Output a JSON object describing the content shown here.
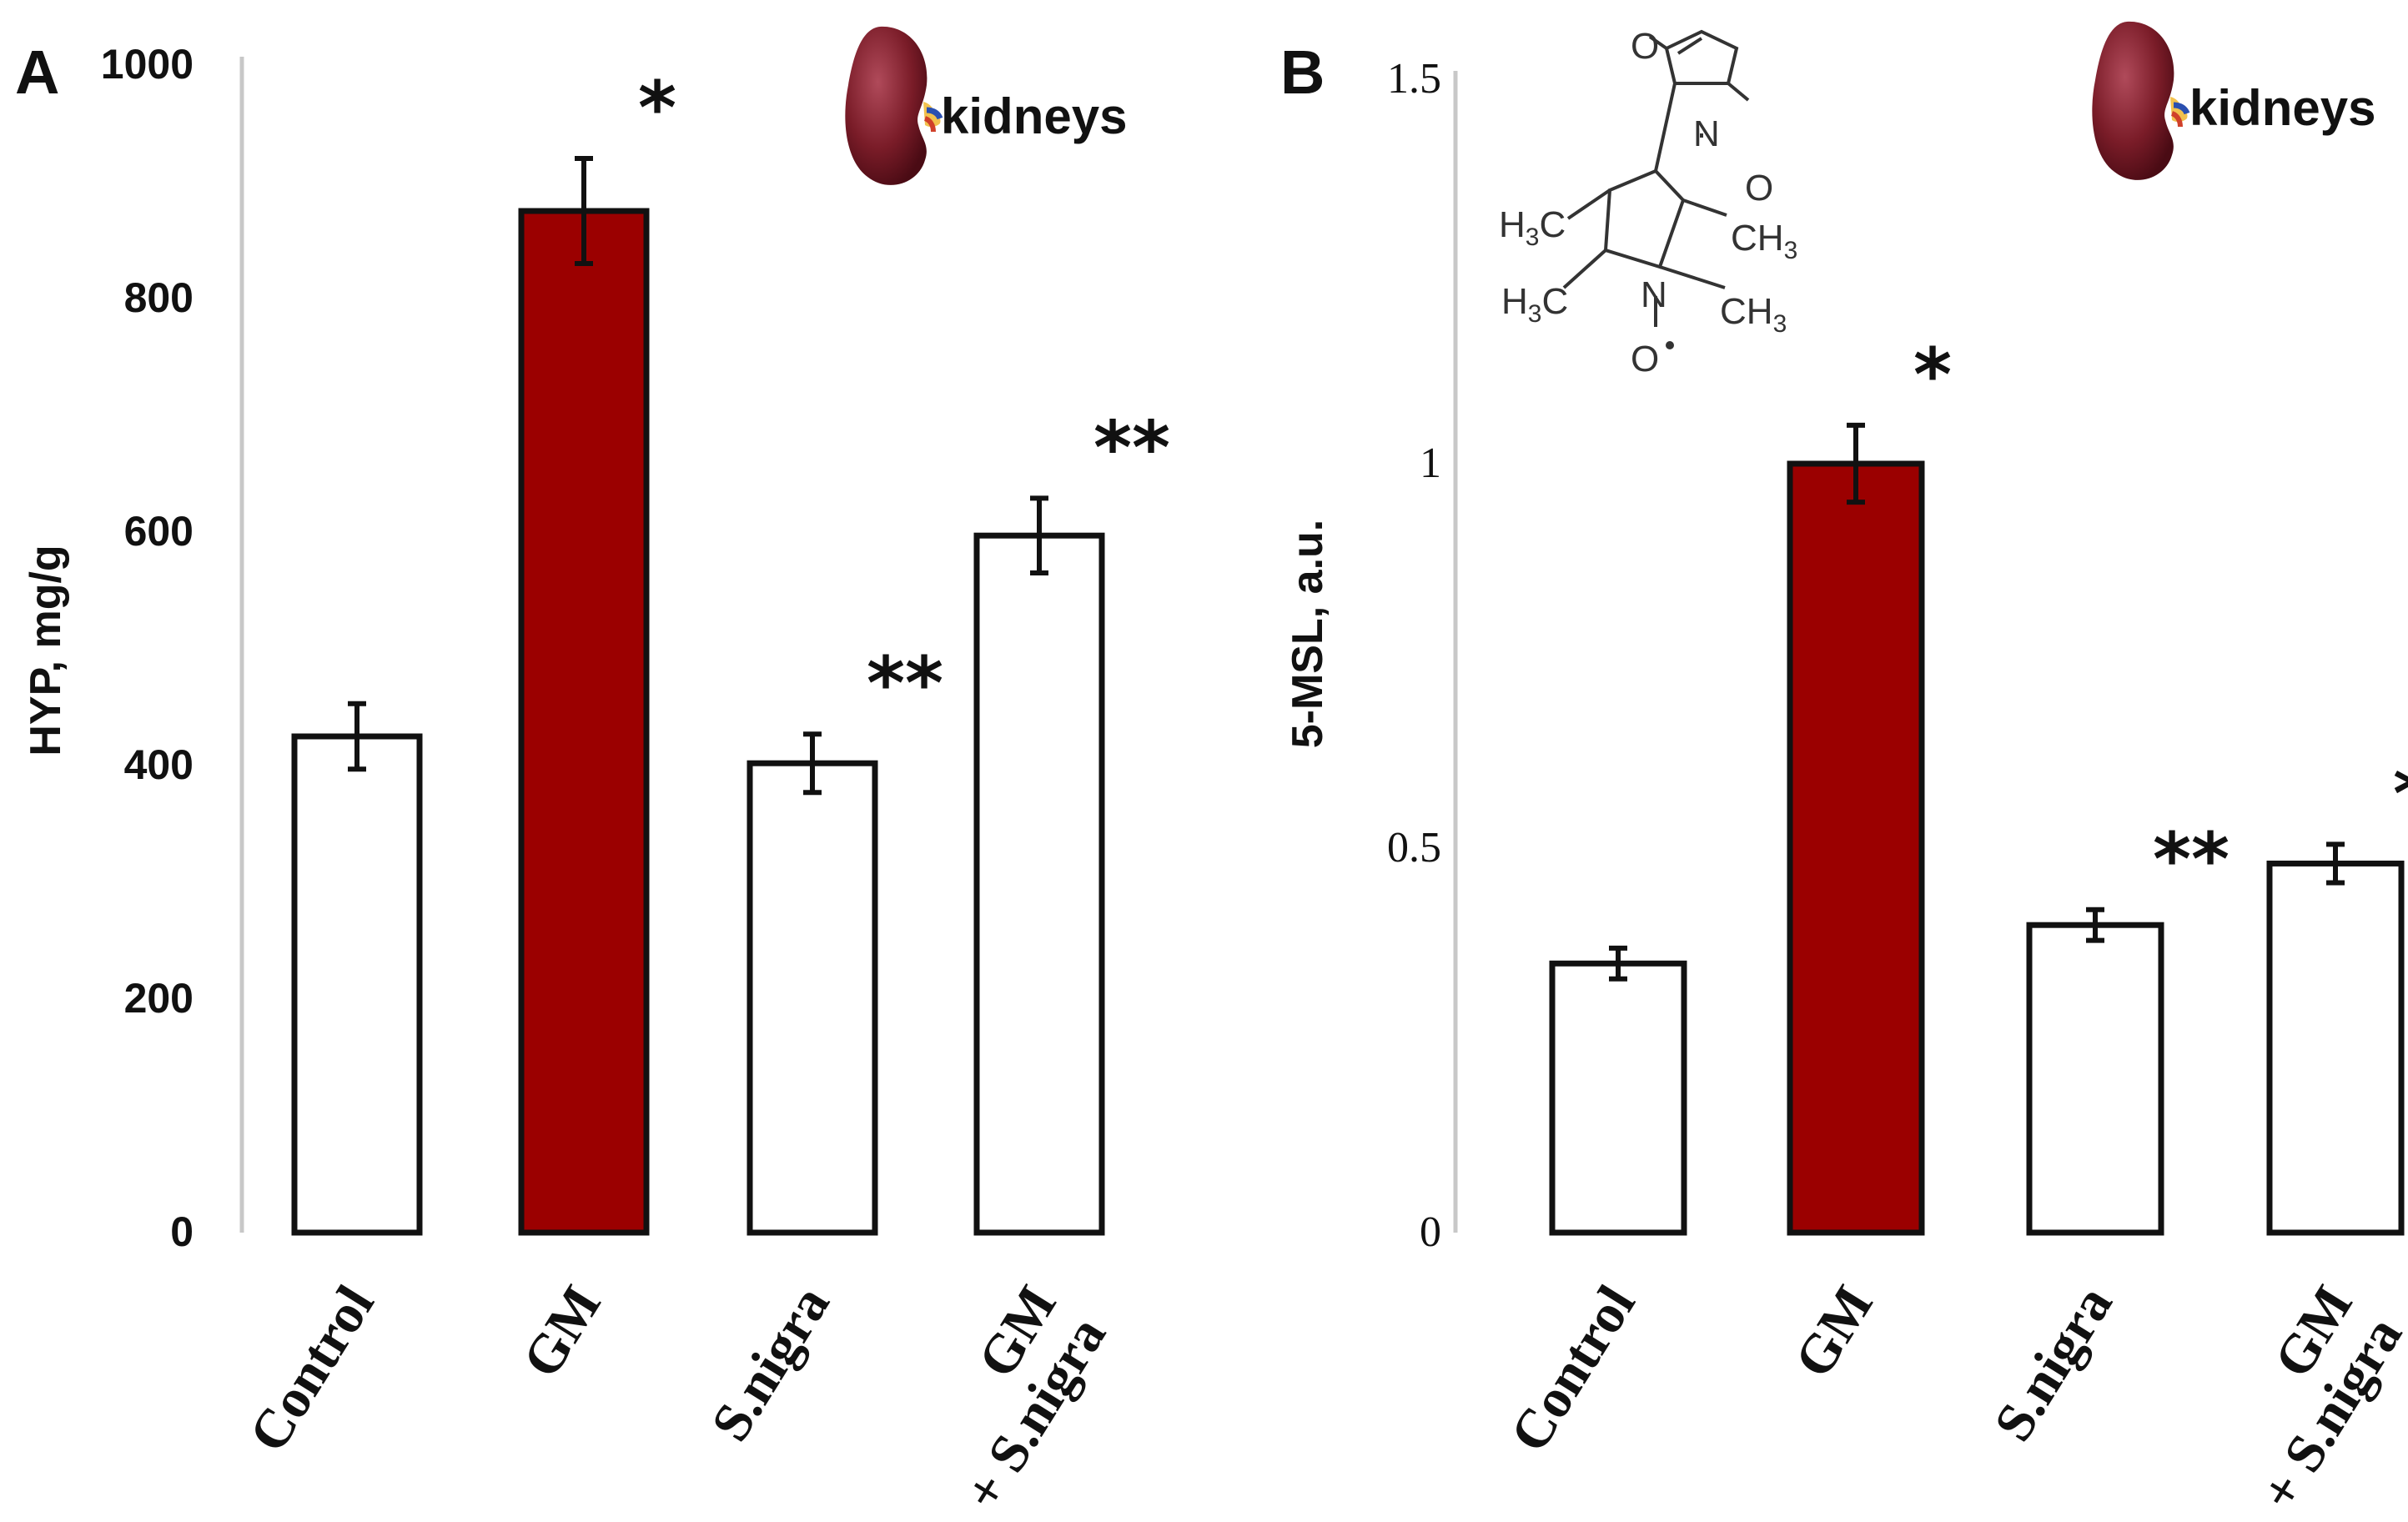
{
  "colors": {
    "highlight": "#9b0000",
    "plain": "#ffffff",
    "stroke": "#111111",
    "axis": "#c8c8c8"
  },
  "icons": [
    "kidney-icon",
    "spin-label-structure"
  ],
  "chart_data": [
    {
      "panel": "A",
      "type": "bar",
      "ylabel": "HYP, mg/g",
      "ylim": [
        0,
        1000
      ],
      "yticks": [
        "0",
        "200",
        "400",
        "600",
        "800",
        "1000"
      ],
      "categories": [
        [
          "Control"
        ],
        [
          "GM"
        ],
        [
          "S.nigra"
        ],
        [
          "GM",
          "+ S.nigra"
        ]
      ],
      "values": [
        425,
        875,
        402,
        597
      ],
      "errors": [
        28,
        45,
        25,
        32
      ],
      "highlight": [
        false,
        true,
        false,
        false
      ],
      "significance": [
        "",
        "*",
        "**",
        "**"
      ],
      "organ_label": "kidneys",
      "grid": false
    },
    {
      "panel": "B",
      "type": "bar",
      "ylabel": "5-MSL, a.u.",
      "ylim": [
        0,
        1.5
      ],
      "yticks": [
        "0",
        "0.5",
        "1",
        "1.5"
      ],
      "categories": [
        [
          "Control"
        ],
        [
          "GM"
        ],
        [
          "S.nigra"
        ],
        [
          "GM",
          "+ S.nigra"
        ]
      ],
      "values": [
        0.35,
        1.0,
        0.4,
        0.48
      ],
      "errors": [
        0.02,
        0.05,
        0.02,
        0.025
      ],
      "highlight": [
        false,
        true,
        false,
        false
      ],
      "significance": [
        "",
        "*",
        "**",
        "**"
      ],
      "organ_label": "kidneys",
      "grid": false,
      "structure_labels": {
        "o1": "O",
        "o2": "O",
        "n_ring": "N",
        "n_ox": "N",
        "o_rad": "O",
        "ch3_a": "H",
        "ch3_b": "CH",
        "ch3_c": "H",
        "ch3_d": "CH",
        "sub3": "3",
        "c": "C"
      }
    }
  ]
}
